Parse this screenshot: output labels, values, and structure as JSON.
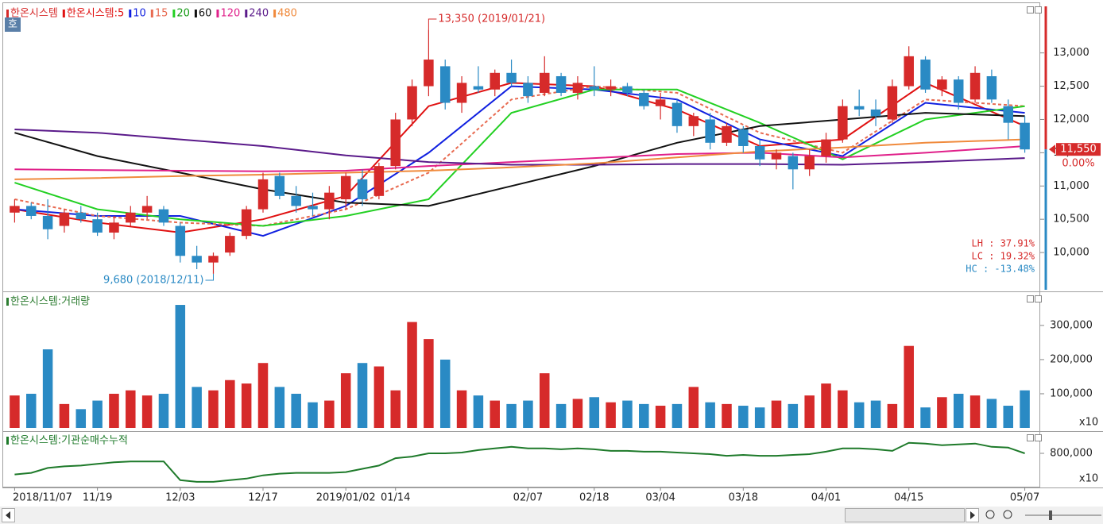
{
  "chart_data": [
    {
      "type": "candlestick",
      "title": "한온시스템",
      "button": "호",
      "ylim": [
        9440,
        13700
      ],
      "yticks": [
        {
          "value": 10000,
          "label": "10,000"
        },
        {
          "value": 10500,
          "label": "10,500"
        },
        {
          "value": 11000,
          "label": "11,000"
        },
        {
          "value": 11500,
          "label": "11,500"
        },
        {
          "value": 12000,
          "label": "12,000"
        },
        {
          "value": 12500,
          "label": "12,500"
        },
        {
          "value": 13000,
          "label": "13,000"
        }
      ],
      "up_color": "#d62a2a",
      "down_color": "#2a8ac4",
      "ohlc": [
        [
          10600,
          10800,
          10450,
          10700
        ],
        [
          10700,
          10750,
          10500,
          10550
        ],
        [
          10550,
          10800,
          10200,
          10350
        ],
        [
          10400,
          10650,
          10300,
          10600
        ],
        [
          10600,
          10700,
          10450,
          10500
        ],
        [
          10500,
          10600,
          10250,
          10300
        ],
        [
          10300,
          10550,
          10200,
          10450
        ],
        [
          10450,
          10700,
          10400,
          10600
        ],
        [
          10600,
          10850,
          10500,
          10700
        ],
        [
          10650,
          10700,
          10400,
          10450
        ],
        [
          10400,
          10450,
          9850,
          9950
        ],
        [
          9950,
          10100,
          9750,
          9850
        ],
        [
          9850,
          10000,
          9680,
          9950
        ],
        [
          10000,
          10300,
          9950,
          10250
        ],
        [
          10250,
          10700,
          10200,
          10650
        ],
        [
          10650,
          11200,
          10600,
          11100
        ],
        [
          11150,
          11200,
          10800,
          10850
        ],
        [
          10850,
          11000,
          10600,
          10700
        ],
        [
          10700,
          10900,
          10550,
          10650
        ],
        [
          10650,
          11000,
          10500,
          10900
        ],
        [
          10800,
          11200,
          10650,
          11150
        ],
        [
          11100,
          11250,
          10700,
          10800
        ],
        [
          10850,
          11350,
          10800,
          11300
        ],
        [
          11300,
          12100,
          11250,
          12000
        ],
        [
          12000,
          12600,
          11900,
          12500
        ],
        [
          12500,
          13350,
          12350,
          12900
        ],
        [
          12800,
          12900,
          12150,
          12250
        ],
        [
          12250,
          12650,
          12100,
          12550
        ],
        [
          12500,
          12800,
          12400,
          12450
        ],
        [
          12450,
          12750,
          12350,
          12700
        ],
        [
          12700,
          12900,
          12500,
          12550
        ],
        [
          12550,
          12650,
          12250,
          12350
        ],
        [
          12400,
          12950,
          12350,
          12700
        ],
        [
          12650,
          12700,
          12350,
          12400
        ],
        [
          12400,
          12650,
          12300,
          12550
        ],
        [
          12500,
          12800,
          12350,
          12450
        ],
        [
          12450,
          12600,
          12350,
          12500
        ],
        [
          12500,
          12550,
          12350,
          12400
        ],
        [
          12400,
          12450,
          12150,
          12200
        ],
        [
          12200,
          12400,
          12000,
          12300
        ],
        [
          12250,
          12300,
          11800,
          11900
        ],
        [
          11900,
          12100,
          11750,
          12050
        ],
        [
          12000,
          12100,
          11550,
          11650
        ],
        [
          11650,
          11950,
          11600,
          11900
        ],
        [
          11850,
          11900,
          11500,
          11600
        ],
        [
          11600,
          11700,
          11300,
          11400
        ],
        [
          11400,
          11550,
          11250,
          11500
        ],
        [
          11450,
          11500,
          10950,
          11250
        ],
        [
          11250,
          11550,
          11150,
          11450
        ],
        [
          11450,
          11800,
          11350,
          11700
        ],
        [
          11700,
          12300,
          11650,
          12200
        ],
        [
          12200,
          12450,
          12050,
          12150
        ],
        [
          12150,
          12300,
          11900,
          12050
        ],
        [
          12000,
          12600,
          11950,
          12500
        ],
        [
          12500,
          13100,
          12450,
          12950
        ],
        [
          12900,
          12950,
          12400,
          12450
        ],
        [
          12450,
          12650,
          12350,
          12600
        ],
        [
          12600,
          12650,
          12150,
          12250
        ],
        [
          12300,
          12800,
          12250,
          12700
        ],
        [
          12650,
          12750,
          12250,
          12300
        ],
        [
          12200,
          12300,
          11700,
          11950
        ],
        [
          11950,
          12050,
          11500,
          11550
        ]
      ],
      "ma_x": [
        0,
        5,
        10,
        15,
        20,
        25,
        30,
        35,
        40,
        45,
        50,
        55,
        61
      ],
      "series": [
        {
          "name": "한온시스템:5",
          "color": "#e01010",
          "values": [
            10650,
            10450,
            10300,
            10500,
            10850,
            12200,
            12550,
            12500,
            12150,
            11600,
            11700,
            12550,
            11900
          ]
        },
        {
          "name": "10",
          "color": "#1020e0",
          "values": [
            10650,
            10550,
            10550,
            10250,
            10700,
            11500,
            12500,
            12450,
            12300,
            11700,
            11450,
            12250,
            12100
          ]
        },
        {
          "name": "15",
          "color": "#e86a50",
          "dash": true,
          "values": [
            10800,
            10550,
            10450,
            10400,
            10650,
            11200,
            12300,
            12500,
            12400,
            11800,
            11500,
            12300,
            12200
          ]
        },
        {
          "name": "20",
          "color": "#22d022",
          "values": [
            11050,
            10650,
            10500,
            10400,
            10550,
            10800,
            12100,
            12450,
            12450,
            11950,
            11400,
            12000,
            12200
          ]
        },
        {
          "name": "60",
          "color": "#111111",
          "values": [
            11800,
            11450,
            11200,
            10950,
            10750,
            10700,
            11000,
            11300,
            11650,
            11900,
            12000,
            12100,
            12050
          ]
        },
        {
          "name": "120",
          "color": "#e0208a",
          "values": [
            11250,
            11240,
            11230,
            11220,
            11230,
            11300,
            11360,
            11420,
            11480,
            11500,
            11430,
            11500,
            11600
          ]
        },
        {
          "name": "240",
          "color": "#5a1a8a",
          "values": [
            11850,
            11800,
            11700,
            11600,
            11460,
            11360,
            11320,
            11320,
            11330,
            11330,
            11320,
            11360,
            11420
          ]
        },
        {
          "name": "480",
          "color": "#f08a3c",
          "values": [
            11100,
            11120,
            11150,
            11170,
            11200,
            11230,
            11280,
            11340,
            11430,
            11520,
            11580,
            11650,
            11700
          ]
        }
      ],
      "annotations": [
        {
          "text": "13,350 (2019/01/21)",
          "value": 13350,
          "x": 25,
          "color": "#d62a2a",
          "side": "right"
        },
        {
          "text": "9,680 (2018/12/11)",
          "value": 9680,
          "x": 12,
          "color": "#2a8ac4",
          "side": "left"
        }
      ],
      "last_price": {
        "value": 11550,
        "label": "11,550"
      },
      "change_label": "0.00%",
      "stats": [
        "LH :  37.91%",
        "LC :  19.32%",
        "HC : -13.48%"
      ],
      "stats_colors": [
        "#d62a2a",
        "#d62a2a",
        "#2a8ac4"
      ]
    },
    {
      "type": "bar",
      "title": "한온시스템:거래량",
      "unit_label": "x10",
      "color": "#2e7d32",
      "ylim": [
        0,
        388000
      ],
      "yticks": [
        {
          "value": 100000,
          "label": "100,000"
        },
        {
          "value": 200000,
          "label": "200,000"
        },
        {
          "value": 300000,
          "label": "300,000"
        }
      ],
      "values": [
        95000,
        100000,
        230000,
        70000,
        55000,
        80000,
        100000,
        110000,
        95000,
        100000,
        360000,
        120000,
        110000,
        140000,
        130000,
        190000,
        120000,
        100000,
        75000,
        80000,
        160000,
        190000,
        180000,
        110000,
        310000,
        260000,
        200000,
        110000,
        95000,
        80000,
        70000,
        80000,
        160000,
        70000,
        85000,
        90000,
        75000,
        80000,
        70000,
        65000,
        70000,
        120000,
        75000,
        70000,
        65000,
        60000,
        80000,
        70000,
        95000,
        130000,
        110000,
        75000,
        80000,
        70000,
        240000,
        60000,
        90000,
        100000,
        95000,
        85000,
        65000,
        110000
      ]
    },
    {
      "type": "line",
      "title": "한온시스템:기관순매수누적",
      "unit_label": "x10",
      "color": "#1e7a2a",
      "ylim": [
        400000,
        1034000
      ],
      "yticks": [
        {
          "value": 800000,
          "label": "800,000"
        }
      ],
      "values": [
        540000,
        560000,
        620000,
        640000,
        650000,
        670000,
        690000,
        700000,
        700000,
        700000,
        470000,
        450000,
        450000,
        470000,
        490000,
        530000,
        550000,
        560000,
        560000,
        560000,
        570000,
        610000,
        650000,
        740000,
        760000,
        800000,
        800000,
        810000,
        840000,
        860000,
        880000,
        860000,
        860000,
        850000,
        860000,
        850000,
        830000,
        830000,
        820000,
        820000,
        810000,
        800000,
        790000,
        770000,
        780000,
        770000,
        770000,
        780000,
        790000,
        820000,
        860000,
        860000,
        850000,
        830000,
        930000,
        920000,
        900000,
        910000,
        920000,
        880000,
        870000,
        800000
      ],
      "categories": [
        "2018/11/07",
        null,
        null,
        null,
        null,
        "11/19",
        null,
        null,
        null,
        null,
        "12/03",
        null,
        null,
        null,
        null,
        "12/17",
        null,
        null,
        null,
        null,
        "2019/01/02",
        null,
        null,
        "01/14",
        null,
        null,
        null,
        null,
        null,
        null,
        null,
        "02/07",
        null,
        null,
        null,
        "02/18",
        null,
        null,
        null,
        "03/04",
        null,
        null,
        null,
        null,
        "03/18",
        null,
        null,
        null,
        null,
        "04/01",
        null,
        null,
        null,
        null,
        "04/15",
        null,
        null,
        null,
        null,
        null,
        null,
        "05/07"
      ]
    }
  ]
}
